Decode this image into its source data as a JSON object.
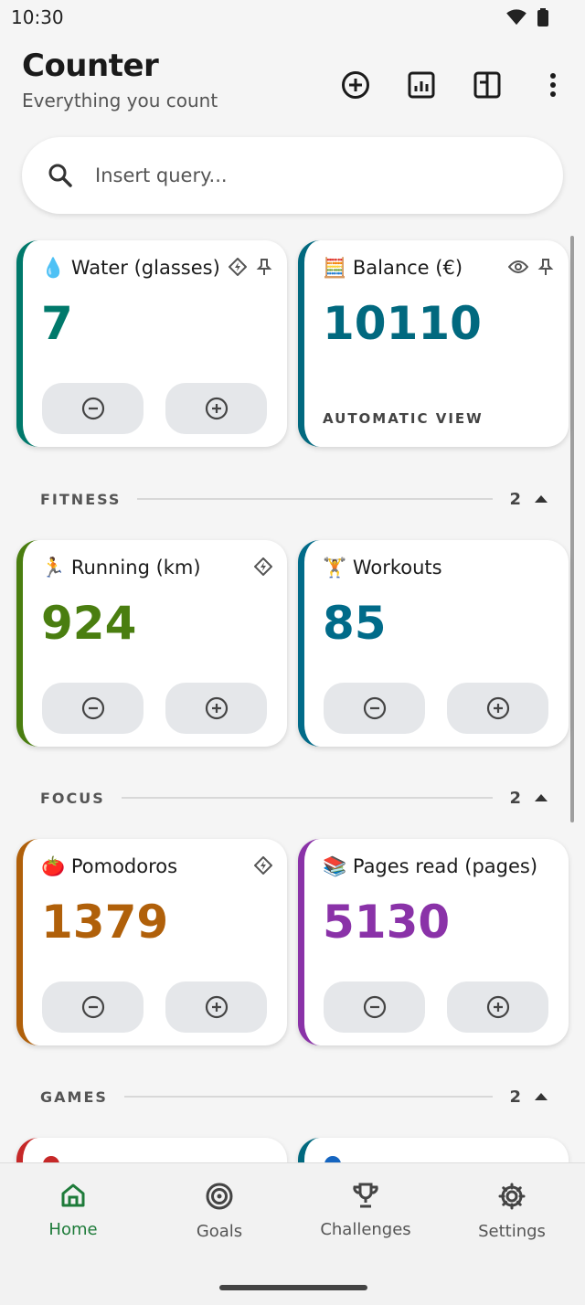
{
  "status_bar": {
    "time": "10:30"
  },
  "app": {
    "title": "Counter",
    "subtitle": "Everything you count"
  },
  "search": {
    "placeholder": "Insert query..."
  },
  "pinned": [
    {
      "emoji": "💧",
      "label": "Water (glasses)",
      "value": "7",
      "color": "#00796b",
      "flags": [
        "bolt-diamond-icon",
        "pin-icon"
      ]
    },
    {
      "emoji": "🧮",
      "label": "Balance (€)",
      "value": "10110",
      "color": "#01697f",
      "flags": [
        "eye-icon",
        "pin-icon"
      ],
      "footer": "AUTOMATIC VIEW"
    }
  ],
  "sections": [
    {
      "title": "FITNESS",
      "count": "2",
      "cards": [
        {
          "emoji": "🏃",
          "label": "Running (km)",
          "value": "924",
          "color": "#4a7e10",
          "flags": [
            "bolt-diamond-icon"
          ]
        },
        {
          "emoji": "🏋️",
          "label": "Workouts",
          "value": "85",
          "color": "#016b89",
          "flags": []
        }
      ]
    },
    {
      "title": "FOCUS",
      "count": "2",
      "cards": [
        {
          "emoji": "🍅",
          "label": "Pomodoros",
          "value": "1379",
          "color": "#b0600a",
          "flags": [
            "bolt-diamond-icon"
          ]
        },
        {
          "emoji": "📚",
          "label": "Pages read (pages)",
          "value": "5130",
          "color": "#8a32a8",
          "flags": []
        }
      ]
    },
    {
      "title": "GAMES",
      "count": "2",
      "cards": []
    }
  ],
  "games_partial_colors": [
    "#c62828",
    "#1565c0"
  ],
  "nav": [
    {
      "label": "Home",
      "icon": "home-icon",
      "active": true
    },
    {
      "label": "Goals",
      "icon": "target-icon",
      "active": false
    },
    {
      "label": "Challenges",
      "icon": "trophy-icon",
      "active": false
    },
    {
      "label": "Settings",
      "icon": "gear-icon",
      "active": false
    }
  ],
  "colors": {
    "accent": "#1e7b3a",
    "button_bg": "#e5e7ea",
    "card_bg": "#ffffff"
  }
}
